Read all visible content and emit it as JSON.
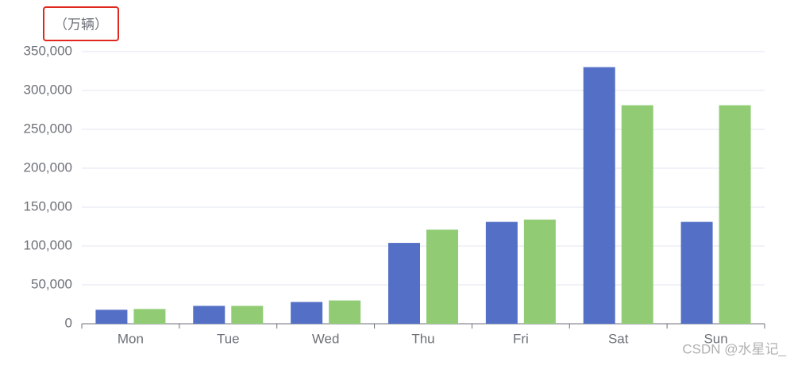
{
  "chart_data": {
    "type": "bar",
    "unit_label": "（万辆）",
    "categories": [
      "Mon",
      "Tue",
      "Wed",
      "Thu",
      "Fri",
      "Sat",
      "Sun"
    ],
    "series": [
      {
        "color": "#5470c6",
        "values": [
          18000,
          23000,
          28000,
          104000,
          131000,
          330000,
          131000
        ]
      },
      {
        "color": "#91cc75",
        "values": [
          19000,
          23000,
          30000,
          121000,
          134000,
          281000,
          281000
        ]
      }
    ],
    "ylim": [
      0,
      350000
    ],
    "yticks": [
      0,
      {
        "value": 50000,
        "label": "50,000"
      },
      {
        "value": 100000,
        "label": "100,000"
      },
      {
        "value": 150000,
        "label": "150,000"
      },
      {
        "value": 200000,
        "label": "200,000"
      },
      {
        "value": 250000,
        "label": "250,000"
      },
      {
        "value": 300000,
        "label": "300,000"
      },
      {
        "value": 350000,
        "label": "350,000"
      }
    ],
    "grid": true,
    "watermark": "CSDN @水星记_"
  }
}
